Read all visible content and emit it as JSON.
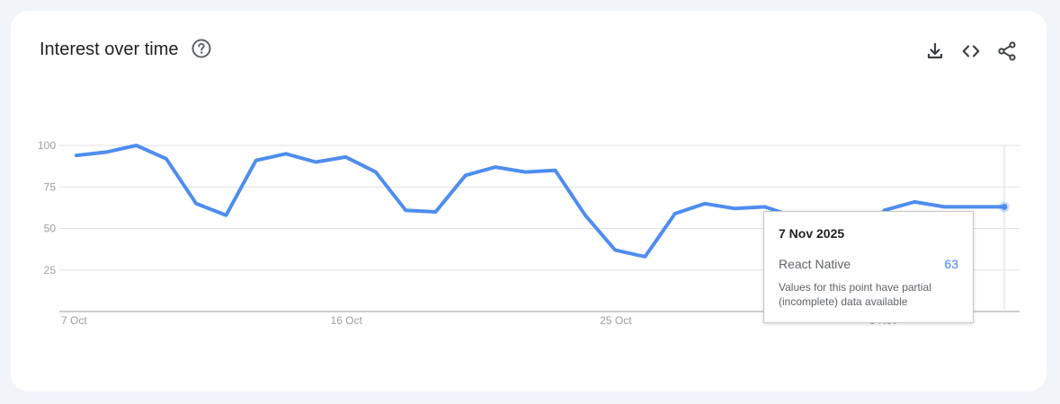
{
  "header": {
    "title": "Interest over time"
  },
  "icons": {
    "help": "help-circle-icon",
    "download": "download-icon",
    "embed": "code-icon",
    "share": "share-icon"
  },
  "colors": {
    "line": "#4e8def",
    "grid": "#e0e0e0",
    "tick_label": "#9aa0a6"
  },
  "chart_data": {
    "type": "line",
    "x_tick_labels": [
      "7 Oct",
      "16 Oct",
      "25 Oct",
      "3 Nov"
    ],
    "y_ticks": [
      25,
      50,
      75,
      100
    ],
    "ylim": [
      0,
      100
    ],
    "grid": true,
    "series": [
      {
        "name": "React Native",
        "x": [
          "2025-10-07",
          "2025-10-08",
          "2025-10-09",
          "2025-10-10",
          "2025-10-11",
          "2025-10-12",
          "2025-10-13",
          "2025-10-14",
          "2025-10-15",
          "2025-10-16",
          "2025-10-17",
          "2025-10-18",
          "2025-10-19",
          "2025-10-20",
          "2025-10-21",
          "2025-10-22",
          "2025-10-23",
          "2025-10-24",
          "2025-10-25",
          "2025-10-26",
          "2025-10-27",
          "2025-10-28",
          "2025-10-29",
          "2025-10-30",
          "2025-10-31",
          "2025-11-01",
          "2025-11-02",
          "2025-11-03",
          "2025-11-04",
          "2025-11-05",
          "2025-11-06",
          "2025-11-07"
        ],
        "values": [
          94,
          96,
          100,
          92,
          65,
          58,
          91,
          95,
          90,
          93,
          84,
          61,
          60,
          82,
          87,
          84,
          85,
          58,
          37,
          33,
          59,
          65,
          62,
          63,
          57,
          35,
          35,
          61,
          66,
          63,
          63,
          63
        ]
      }
    ]
  },
  "tooltip": {
    "date": "7 Nov 2025",
    "series_name": "React Native",
    "value": "63",
    "note": "Values for this point have partial (incomplete) data available"
  }
}
